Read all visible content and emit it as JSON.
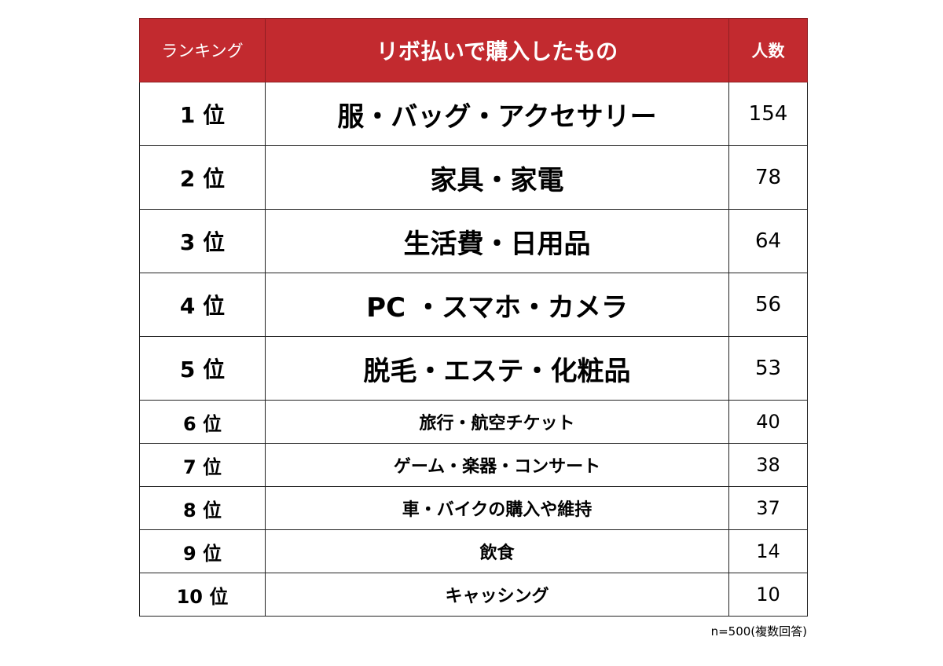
{
  "table": {
    "headers": {
      "rank": "ランキング",
      "item": "リボ払いで購入したもの",
      "count": "人数"
    },
    "rows": [
      {
        "rank": "1 位",
        "item": "服・バッグ・アクセサリー",
        "count": "154"
      },
      {
        "rank": "2 位",
        "item": "家具・家電",
        "count": "78"
      },
      {
        "rank": "3 位",
        "item": "生活費・日用品",
        "count": "64"
      },
      {
        "rank": "4 位",
        "item": "PC ・スマホ・カメラ",
        "count": "56"
      },
      {
        "rank": "5 位",
        "item": "脱毛・エステ・化粧品",
        "count": "53"
      },
      {
        "rank": "6 位",
        "item": "旅行・航空チケット",
        "count": "40"
      },
      {
        "rank": "7 位",
        "item": "ゲーム・楽器・コンサート",
        "count": "38"
      },
      {
        "rank": "8 位",
        "item": "車・バイクの購入や維持",
        "count": "37"
      },
      {
        "rank": "9 位",
        "item": "飲食",
        "count": "14"
      },
      {
        "rank": "10 位",
        "item": "キャッシング",
        "count": "10"
      }
    ]
  },
  "note": "n=500(複数回答)",
  "colors": {
    "header_bg": "#c22a2f",
    "header_text": "#ffffff"
  }
}
